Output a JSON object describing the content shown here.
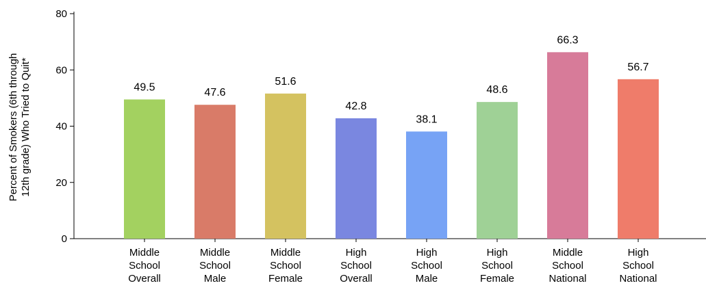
{
  "chart_data": {
    "type": "bar",
    "title": "",
    "xlabel": "",
    "ylabel": [
      "Percent of Smokers (6th through",
      "12th grade) Who Tried to Quit*"
    ],
    "ylim": [
      0,
      80
    ],
    "yticks": [
      0,
      20,
      40,
      60,
      80
    ],
    "grid": false,
    "categories": [
      [
        "Middle",
        "School",
        "Overall"
      ],
      [
        "Middle",
        "School",
        "Male"
      ],
      [
        "Middle",
        "School",
        "Female"
      ],
      [
        "High",
        "School",
        "Overall"
      ],
      [
        "High",
        "School",
        "Male"
      ],
      [
        "High",
        "School",
        "Female"
      ],
      [
        "Middle",
        "School",
        "National"
      ],
      [
        "High",
        "School",
        "National"
      ]
    ],
    "values": [
      49.5,
      47.6,
      51.6,
      42.8,
      38.1,
      48.6,
      66.3,
      56.7
    ],
    "colors": [
      "#a3d160",
      "#d97b68",
      "#d4c260",
      "#7a87e0",
      "#77a3f5",
      "#9fd196",
      "#d77b99",
      "#ef7c6a"
    ]
  }
}
